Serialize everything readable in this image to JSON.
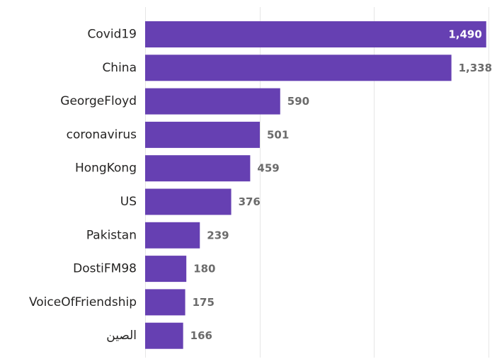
{
  "chart_data": {
    "type": "bar",
    "orientation": "horizontal",
    "categories": [
      "Covid19",
      "China",
      "GeorgeFloyd",
      "coronavirus",
      "HongKong",
      "US",
      "Pakistan",
      "DostiFM98",
      "VoiceOfFriendship",
      "الصين"
    ],
    "values": [
      1490,
      1338,
      590,
      501,
      459,
      376,
      239,
      180,
      175,
      166
    ],
    "value_labels": [
      "1,490",
      "1,338",
      "590",
      "501",
      "459",
      "376",
      "239",
      "180",
      "175",
      "166"
    ],
    "xlim": [
      0,
      1500
    ],
    "gridlines_x": [
      0,
      500,
      1000,
      1500
    ],
    "grid": true,
    "legend": "none",
    "bar_color": "#6640b2",
    "title": "",
    "xlabel": "",
    "ylabel": ""
  }
}
